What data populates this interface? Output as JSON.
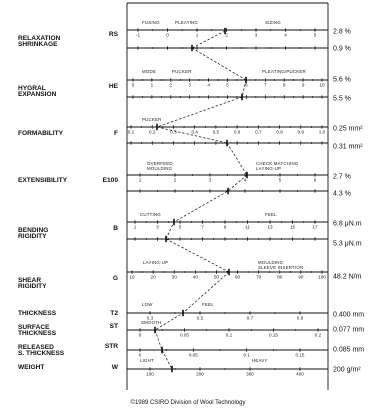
{
  "footer": "©1989 CSIRO Division of Wool Technology",
  "parameters": [
    {
      "label": "RELAXATION\nSHRINKAGE",
      "symbol": "RS",
      "scale_captions": [
        "FUSING",
        "PLEATING",
        "SIZING"
      ],
      "values": [
        "2.8 %",
        "0.9 %"
      ]
    },
    {
      "label": "HYGRAL\nEXPANSION",
      "symbol": "HE",
      "scale_captions": [
        "MODE",
        "PUCKER",
        "PLEATING/PUCKER"
      ],
      "values": [
        "5.6 %",
        "5.5 %"
      ]
    },
    {
      "label": "FORMABILITY",
      "symbol": "F",
      "scale_captions": [
        "PUCKER"
      ],
      "values": [
        "0.25 mm²",
        "0.31 mm²"
      ]
    },
    {
      "label": "EXTENSIBILITY",
      "symbol": "E100",
      "scale_captions": [
        "OVERFEED\nMOULDING",
        "CHECK MATCHING\nLAYING-UP"
      ],
      "values": [
        "2.7 %",
        "4.3 %"
      ]
    },
    {
      "label": "BENDING\nRIGIDITY",
      "symbol": "B",
      "scale_captions": [
        "CUTTING",
        "FEEL"
      ],
      "values": [
        "6.8 μN.m",
        "5.3 μN.m"
      ]
    },
    {
      "label": "SHEAR\nRIGIDITY",
      "symbol": "G",
      "scale_captions": [
        "LAYING-UP",
        "MOULDING\nSLEEVE INSERTION"
      ],
      "values": [
        "48.2 N/m"
      ]
    },
    {
      "label": "THICKNESS",
      "symbol": "T2",
      "scale_captions": [
        "LOW",
        "FEEL"
      ],
      "values": [
        "0.400 mm"
      ]
    },
    {
      "label": "SURFACE\nTHICKNESS",
      "symbol": "ST",
      "scale_captions": [
        "SMOOTH"
      ],
      "values": [
        "0.077 mm"
      ]
    },
    {
      "label": "RELEASED\nS. THICKNESS",
      "symbol": "STR",
      "scale_captions": [],
      "values": [
        "0.085 mm"
      ]
    },
    {
      "label": "WEIGHT",
      "symbol": "W",
      "scale_captions": [
        "LIGHT",
        "HEAVY"
      ],
      "values": [
        "200 g/m²"
      ]
    }
  ],
  "tick_labels": {
    "RS": [
      "-1",
      "0",
      "1",
      "2",
      "3",
      "4",
      "5"
    ],
    "HE": [
      "0",
      "1",
      "2",
      "3",
      "4",
      "5",
      "6",
      "7",
      "8",
      "9",
      "10"
    ],
    "F": [
      "0.1",
      "0.2",
      "0.3",
      "0.4",
      "0.5",
      "0.6",
      "0.7",
      "0.8",
      "0.9",
      "1.0"
    ],
    "E100": [
      "1",
      "2",
      "3",
      "4",
      "5",
      "6"
    ],
    "B": [
      "1",
      "3",
      "5",
      "7",
      "9",
      "11",
      "13",
      "15",
      "17"
    ],
    "G": [
      "10",
      "20",
      "30",
      "40",
      "50",
      "60",
      "70",
      "80",
      "90",
      "100"
    ],
    "T2": [
      "0.3",
      "0.5",
      "0.7",
      "0.9"
    ],
    "ST": [
      "0",
      "0.05",
      "0.1",
      "0.15",
      "0.2"
    ],
    "STR": [
      "0",
      "0.05",
      "0.1",
      "0.15"
    ],
    "W": [
      "100",
      "200",
      "300",
      "400"
    ]
  }
}
